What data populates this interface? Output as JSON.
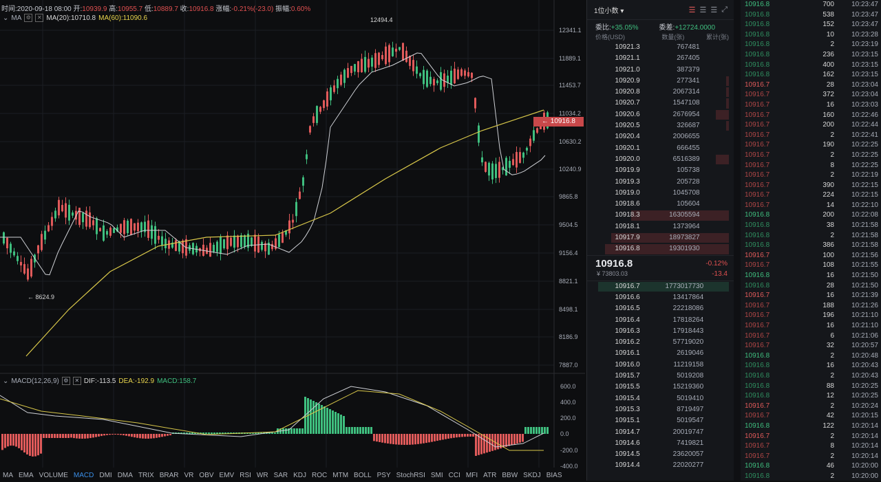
{
  "info": {
    "time": "时间:2020-09-18 08:00",
    "open_label": "开:",
    "open": "10939.9",
    "high_label": "高:",
    "high": "10955.7",
    "low_label": "低:",
    "low": "10889.7",
    "close_label": "收:",
    "close": "10916.8",
    "chg_label": "涨幅:",
    "chg": "-0.21%(-23.0)",
    "amp_label": "振幅:",
    "amp": "0.60%"
  },
  "ma": {
    "name": "MA",
    "ma20": "MA(20):10710.8",
    "ma60": "MA(60):11090.6"
  },
  "macd": {
    "name": "MACD(12,26,9)",
    "dif": "DIF:-113.5",
    "dea": "DEA:-192.9",
    "macd": "MACD:158.7"
  },
  "annotations": {
    "high_mark": "12494.4",
    "low_mark": "← 8624.9"
  },
  "current_price_tag": "← 10916.8",
  "price_axis": [
    "12341.1",
    "11889.1",
    "11453.7",
    "11034.2",
    "10630.2",
    "10240.9",
    "9865.8",
    "9504.5",
    "9156.4",
    "8821.1",
    "8498.1",
    "8186.9",
    "7887.0"
  ],
  "macd_axis": [
    "600.0",
    "400.0",
    "200.0",
    "0.0",
    "-200.0",
    "-400.0"
  ],
  "indicator_tabs": [
    "MA",
    "EMA",
    "VOLUME",
    "MACD",
    "DMI",
    "DMA",
    "TRIX",
    "BRAR",
    "VR",
    "OBV",
    "EMV",
    "RSI",
    "WR",
    "SAR",
    "KDJ",
    "ROC",
    "MTM",
    "BOLL",
    "PSY",
    "StochRSI",
    "SMI",
    "CCI",
    "MFI",
    "ATR",
    "BBW",
    "SKDJ",
    "BIAS"
  ],
  "active_tab": "MACD",
  "colors": {
    "up": "#3fbf7f",
    "down": "#e05a5a",
    "ma20": "#d8d8d8",
    "ma60": "#e8d44d",
    "accent": "#3a8ee6"
  },
  "orderbook": {
    "precision": "1位小数 ▾",
    "ratio_label": "委比:",
    "ratio": "+35.05%",
    "diff_label": "委差:",
    "diff": "+12724.0000",
    "cols": [
      "价格(USD)",
      "数量(张)",
      "累计(张)"
    ],
    "asks": [
      [
        "10921.3",
        "76",
        "7481",
        0
      ],
      [
        "10921.1",
        "26",
        "7405",
        0
      ],
      [
        "10921.0",
        "38",
        "7379",
        0
      ],
      [
        "10920.9",
        "27",
        "7341",
        0.02
      ],
      [
        "10920.8",
        "206",
        "7314",
        0.02
      ],
      [
        "10920.7",
        "154",
        "7108",
        0.02
      ],
      [
        "10920.6",
        "267",
        "6954",
        0.1
      ],
      [
        "10920.5",
        "32",
        "6687",
        0.02
      ],
      [
        "10920.4",
        "200",
        "6655",
        0
      ],
      [
        "10920.1",
        "66",
        "6455",
        0
      ],
      [
        "10920.0",
        "651",
        "6389",
        0.1
      ],
      [
        "10919.9",
        "10",
        "5738",
        0
      ],
      [
        "10919.3",
        "20",
        "5728",
        0
      ],
      [
        "10919.0",
        "104",
        "5708",
        0
      ],
      [
        "10918.6",
        "10",
        "5604",
        0
      ],
      [
        "10918.3",
        "1630",
        "5594",
        0.75
      ],
      [
        "10918.1",
        "137",
        "3964",
        0
      ],
      [
        "10917.9",
        "1897",
        "3827",
        0.9
      ],
      [
        "10916.8",
        "1930",
        "1930",
        0.95
      ]
    ],
    "last": "10916.8",
    "cny": "¥ 73803.03",
    "pct": "-0.12%",
    "chg": "-13.4",
    "bids": [
      [
        "10916.7",
        "17730",
        "17730",
        1
      ],
      [
        "10916.6",
        "134",
        "17864",
        0
      ],
      [
        "10916.5",
        "222",
        "18086",
        0
      ],
      [
        "10916.4",
        "178",
        "18264",
        0
      ],
      [
        "10916.3",
        "179",
        "18443",
        0
      ],
      [
        "10916.2",
        "577",
        "19020",
        0
      ],
      [
        "10916.1",
        "26",
        "19046",
        0
      ],
      [
        "10916.0",
        "112",
        "19158",
        0
      ],
      [
        "10915.7",
        "50",
        "19208",
        0
      ],
      [
        "10915.5",
        "152",
        "19360",
        0
      ],
      [
        "10915.4",
        "50",
        "19410",
        0
      ],
      [
        "10915.3",
        "87",
        "19497",
        0
      ],
      [
        "10915.1",
        "50",
        "19547",
        0
      ],
      [
        "10914.7",
        "200",
        "19747",
        0
      ],
      [
        "10914.6",
        "74",
        "19821",
        0
      ],
      [
        "10914.5",
        "236",
        "20057",
        0
      ],
      [
        "10914.4",
        "220",
        "20277",
        0
      ]
    ]
  },
  "trades": [
    [
      "10916.8",
      "700",
      "10:23:47",
      "up"
    ],
    [
      "10916.8",
      "538",
      "10:23:47",
      "dimg"
    ],
    [
      "10916.8",
      "152",
      "10:23:47",
      "dimg"
    ],
    [
      "10916.8",
      "10",
      "10:23:28",
      "dimg"
    ],
    [
      "10916.8",
      "2",
      "10:23:19",
      "dimg"
    ],
    [
      "10916.8",
      "236",
      "10:23:15",
      "dimg"
    ],
    [
      "10916.8",
      "400",
      "10:23:15",
      "dimg"
    ],
    [
      "10916.8",
      "162",
      "10:23:15",
      "dimg"
    ],
    [
      "10916.7",
      "28",
      "10:23:04",
      "dn"
    ],
    [
      "10916.7",
      "372",
      "10:23:04",
      "dim"
    ],
    [
      "10916.7",
      "16",
      "10:23:03",
      "dim"
    ],
    [
      "10916.7",
      "160",
      "10:22:46",
      "dim"
    ],
    [
      "10916.7",
      "200",
      "10:22:44",
      "dim"
    ],
    [
      "10916.7",
      "2",
      "10:22:41",
      "dim"
    ],
    [
      "10916.7",
      "190",
      "10:22:25",
      "dim"
    ],
    [
      "10916.7",
      "2",
      "10:22:25",
      "dim"
    ],
    [
      "10916.7",
      "8",
      "10:22:25",
      "dim"
    ],
    [
      "10916.7",
      "2",
      "10:22:19",
      "dim"
    ],
    [
      "10916.7",
      "390",
      "10:22:15",
      "dim"
    ],
    [
      "10916.7",
      "224",
      "10:22:15",
      "dim"
    ],
    [
      "10916.7",
      "14",
      "10:22:10",
      "dim"
    ],
    [
      "10916.8",
      "200",
      "10:22:08",
      "up"
    ],
    [
      "10916.8",
      "38",
      "10:21:58",
      "dimg"
    ],
    [
      "10916.8",
      "2",
      "10:21:58",
      "dimg"
    ],
    [
      "10916.8",
      "386",
      "10:21:58",
      "dimg"
    ],
    [
      "10916.7",
      "100",
      "10:21:56",
      "dn"
    ],
    [
      "10916.7",
      "108",
      "10:21:55",
      "dim"
    ],
    [
      "10916.8",
      "16",
      "10:21:50",
      "up"
    ],
    [
      "10916.8",
      "28",
      "10:21:50",
      "dimg"
    ],
    [
      "10916.7",
      "16",
      "10:21:39",
      "dn"
    ],
    [
      "10916.7",
      "188",
      "10:21:26",
      "dim"
    ],
    [
      "10916.7",
      "196",
      "10:21:10",
      "dim"
    ],
    [
      "10916.7",
      "16",
      "10:21:10",
      "dim"
    ],
    [
      "10916.7",
      "6",
      "10:21:06",
      "dim"
    ],
    [
      "10916.7",
      "32",
      "10:20:57",
      "dim"
    ],
    [
      "10916.8",
      "2",
      "10:20:48",
      "up"
    ],
    [
      "10916.8",
      "16",
      "10:20:43",
      "dimg"
    ],
    [
      "10916.8",
      "2",
      "10:20:43",
      "dimg"
    ],
    [
      "10916.8",
      "88",
      "10:20:25",
      "dimg"
    ],
    [
      "10916.8",
      "12",
      "10:20:25",
      "dimg"
    ],
    [
      "10916.7",
      "2",
      "10:20:24",
      "dn"
    ],
    [
      "10916.7",
      "42",
      "10:20:15",
      "dim"
    ],
    [
      "10916.8",
      "122",
      "10:20:14",
      "up"
    ],
    [
      "10916.7",
      "2",
      "10:20:14",
      "dn"
    ],
    [
      "10916.7",
      "8",
      "10:20:14",
      "dim"
    ],
    [
      "10916.7",
      "2",
      "10:20:14",
      "dim"
    ],
    [
      "10916.8",
      "46",
      "10:20:00",
      "up"
    ],
    [
      "10916.8",
      "2",
      "10:20:00",
      "dimg"
    ]
  ]
}
